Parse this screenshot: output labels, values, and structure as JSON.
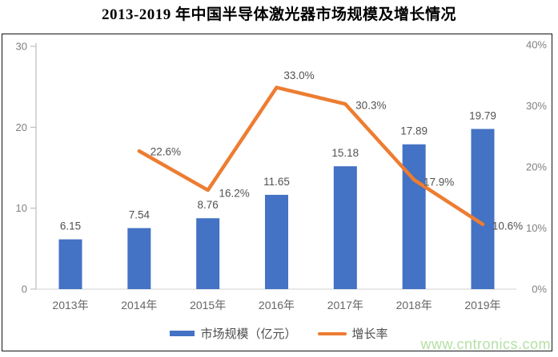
{
  "title": "2013-2019 年中国半导体激光器市场规模及增长情况",
  "watermark": "www.cntronics.com",
  "colors": {
    "bar": "#4472C4",
    "line": "#ED7D31",
    "axis": "#bfbfbf",
    "baseline": "#d9d9d9",
    "watermark_text": "#b5e0a6"
  },
  "chart_data": {
    "type": "combo",
    "title": "2013-2019 年中国半导体激光器市场规模及增长情况",
    "categories": [
      "2013年",
      "2014年",
      "2015年",
      "2016年",
      "2017年",
      "2018年",
      "2019年"
    ],
    "series": [
      {
        "name": "市场规模（亿元）",
        "type": "bar",
        "axis": "left",
        "color": "#4472C4",
        "values": [
          6.15,
          7.54,
          8.76,
          11.65,
          15.18,
          17.89,
          19.79
        ],
        "data_labels": [
          "6.15",
          "7.54",
          "8.76",
          "11.65",
          "15.18",
          "17.89",
          "19.79"
        ]
      },
      {
        "name": "增长率",
        "type": "line",
        "axis": "right",
        "color": "#ED7D31",
        "values": [
          null,
          22.6,
          16.2,
          33.0,
          30.3,
          17.9,
          10.6
        ],
        "data_labels": [
          null,
          "22.6%",
          "16.2%",
          "33.0%",
          "30.3%",
          "17.9%",
          "10.6%"
        ]
      }
    ],
    "left_axis": {
      "min": 0,
      "max": 30,
      "ticks": [
        "0",
        "10",
        "20",
        "30"
      ]
    },
    "right_axis": {
      "min": 0,
      "max": 40,
      "ticks": [
        "0%",
        "10%",
        "20%",
        "30%",
        "40%"
      ]
    },
    "grid": false,
    "legend_position": "bottom"
  }
}
